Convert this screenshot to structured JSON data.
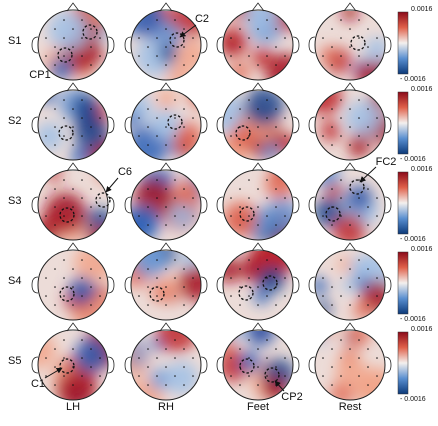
{
  "rows": [
    "S1",
    "S2",
    "S3",
    "S4",
    "S5"
  ],
  "columns": [
    "LH",
    "RH",
    "Feet",
    "Rest"
  ],
  "colorbars": [
    {
      "max": "0.0016",
      "min": "- 0.0016"
    },
    {
      "max": "0.0016",
      "min": "- 0.0016"
    },
    {
      "max": "0.0016",
      "min": "- 0.0016"
    },
    {
      "max": "0.0016",
      "min": "- 0.0016"
    },
    {
      "max": "0.0016",
      "min": "- 0.0016"
    }
  ],
  "annotations": [
    {
      "label": "CP1"
    },
    {
      "label": "C2"
    },
    {
      "label": "C6"
    },
    {
      "label": "FC2"
    },
    {
      "label": "C1"
    },
    {
      "label": "CP2"
    }
  ]
}
